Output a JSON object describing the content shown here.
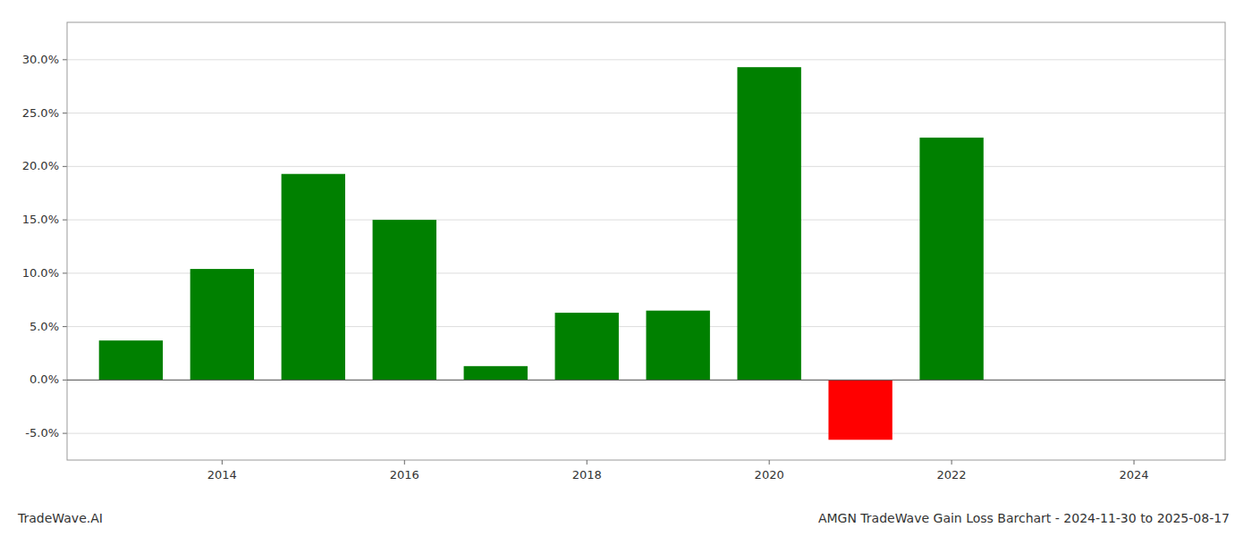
{
  "chart_data": {
    "type": "bar",
    "title": "AMGN TradeWave Gain Loss Barchart - 2024-11-30 to 2025-08-17",
    "annotations": [
      "TradeWave.AI"
    ],
    "x": [
      2013,
      2014,
      2015,
      2016,
      2017,
      2018,
      2019,
      2020,
      2021,
      2022,
      2023
    ],
    "values": [
      0.037,
      0.104,
      0.193,
      0.15,
      0.013,
      0.063,
      0.065,
      0.293,
      -0.056,
      0.227,
      0.0
    ],
    "colors": [
      "#008000",
      "#008000",
      "#008000",
      "#008000",
      "#008000",
      "#008000",
      "#008000",
      "#008000",
      "#ff0000",
      "#008000",
      "#008000"
    ],
    "xlim": [
      2012.3,
      2025.0
    ],
    "xticks": [
      2014,
      2016,
      2018,
      2020,
      2022,
      2024
    ],
    "ylim": [
      -0.075,
      0.335
    ],
    "yticks": [
      {
        "value": -0.05,
        "label": "-5.0%"
      },
      {
        "value": 0.0,
        "label": "0.0%"
      },
      {
        "value": 0.05,
        "label": "5.0%"
      },
      {
        "value": 0.1,
        "label": "10.0%"
      },
      {
        "value": 0.15,
        "label": "15.0%"
      },
      {
        "value": 0.2,
        "label": "20.0%"
      },
      {
        "value": 0.25,
        "label": "25.0%"
      },
      {
        "value": 0.3,
        "label": "30.0%"
      }
    ],
    "grid": true
  }
}
